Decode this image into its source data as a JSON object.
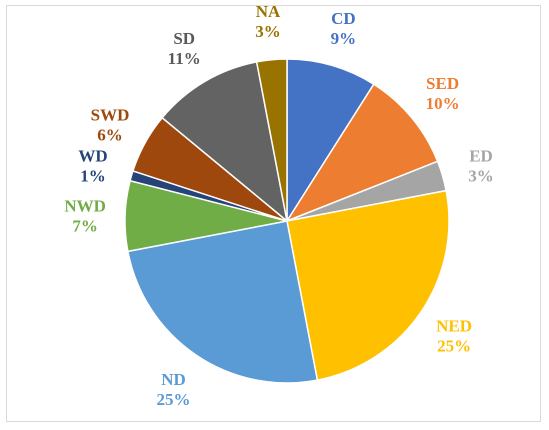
{
  "chart_data": {
    "type": "pie",
    "title": "",
    "start": "top",
    "direction": "clockwise",
    "slices": [
      {
        "label": "CD",
        "value": 9,
        "display": "9%",
        "color": "#4472C4",
        "label_color": "#4472C4"
      },
      {
        "label": "SED",
        "value": 10,
        "display": "10%",
        "color": "#ED7D31",
        "label_color": "#ED7D31"
      },
      {
        "label": "ED",
        "value": 3,
        "display": "3%",
        "color": "#A5A5A5",
        "label_color": "#A5A5A5"
      },
      {
        "label": "NED",
        "value": 25,
        "display": "25%",
        "color": "#FFC000",
        "label_color": "#FFC000"
      },
      {
        "label": "ND",
        "value": 25,
        "display": "25%",
        "color": "#5B9BD5",
        "label_color": "#5B9BD5"
      },
      {
        "label": "NWD",
        "value": 7,
        "display": "7%",
        "color": "#70AD47",
        "label_color": "#70AD47"
      },
      {
        "label": "WD",
        "value": 1,
        "display": "1%",
        "color": "#264478",
        "label_color": "#264478"
      },
      {
        "label": "SWD",
        "value": 6,
        "display": "6%",
        "color": "#9E480E",
        "label_color": "#9E480E"
      },
      {
        "label": "SD",
        "value": 11,
        "display": "11%",
        "color": "#636363",
        "label_color": "#595959"
      },
      {
        "label": "NA",
        "value": 3,
        "display": "3%",
        "color": "#997300",
        "label_color": "#997300"
      }
    ]
  }
}
